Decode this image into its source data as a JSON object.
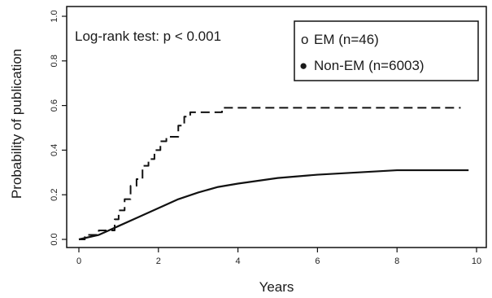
{
  "chart_data": {
    "type": "line",
    "step": true,
    "xlabel": "Years",
    "ylabel": "Probability of publication",
    "xlim": [
      0,
      10
    ],
    "ylim": [
      0,
      1.0
    ],
    "xticks": [
      "0",
      "2",
      "4",
      "6",
      "8",
      "10"
    ],
    "yticks": [
      "0.0",
      "0.2",
      "0.4",
      "0.6",
      "0.8",
      "1.0"
    ],
    "grid": false,
    "legend_position": "top-right",
    "annotation": "Log-rank test: p < 0.001",
    "series": [
      {
        "name": "EM (n=46)",
        "marker": "o",
        "line_style": "dashed",
        "color": "#111111",
        "x": [
          0,
          0.15,
          0.5,
          0.9,
          1.0,
          1.15,
          1.3,
          1.45,
          1.6,
          1.75,
          1.9,
          2.05,
          2.2,
          2.5,
          2.65,
          2.8,
          3.6,
          9.6
        ],
        "y": [
          0.0,
          0.02,
          0.04,
          0.09,
          0.13,
          0.18,
          0.24,
          0.27,
          0.33,
          0.36,
          0.4,
          0.44,
          0.46,
          0.51,
          0.55,
          0.57,
          0.59,
          0.59
        ]
      },
      {
        "name": "Non-EM (n=6003)",
        "marker": "●",
        "line_style": "solid",
        "color": "#111111",
        "x": [
          0,
          0.5,
          1.0,
          1.5,
          2.0,
          2.5,
          3.0,
          3.5,
          4.0,
          5.0,
          6.0,
          7.0,
          8.0,
          9.0,
          9.8
        ],
        "y": [
          0.0,
          0.02,
          0.06,
          0.1,
          0.14,
          0.18,
          0.21,
          0.235,
          0.25,
          0.275,
          0.29,
          0.3,
          0.31,
          0.31,
          0.31
        ]
      }
    ]
  }
}
